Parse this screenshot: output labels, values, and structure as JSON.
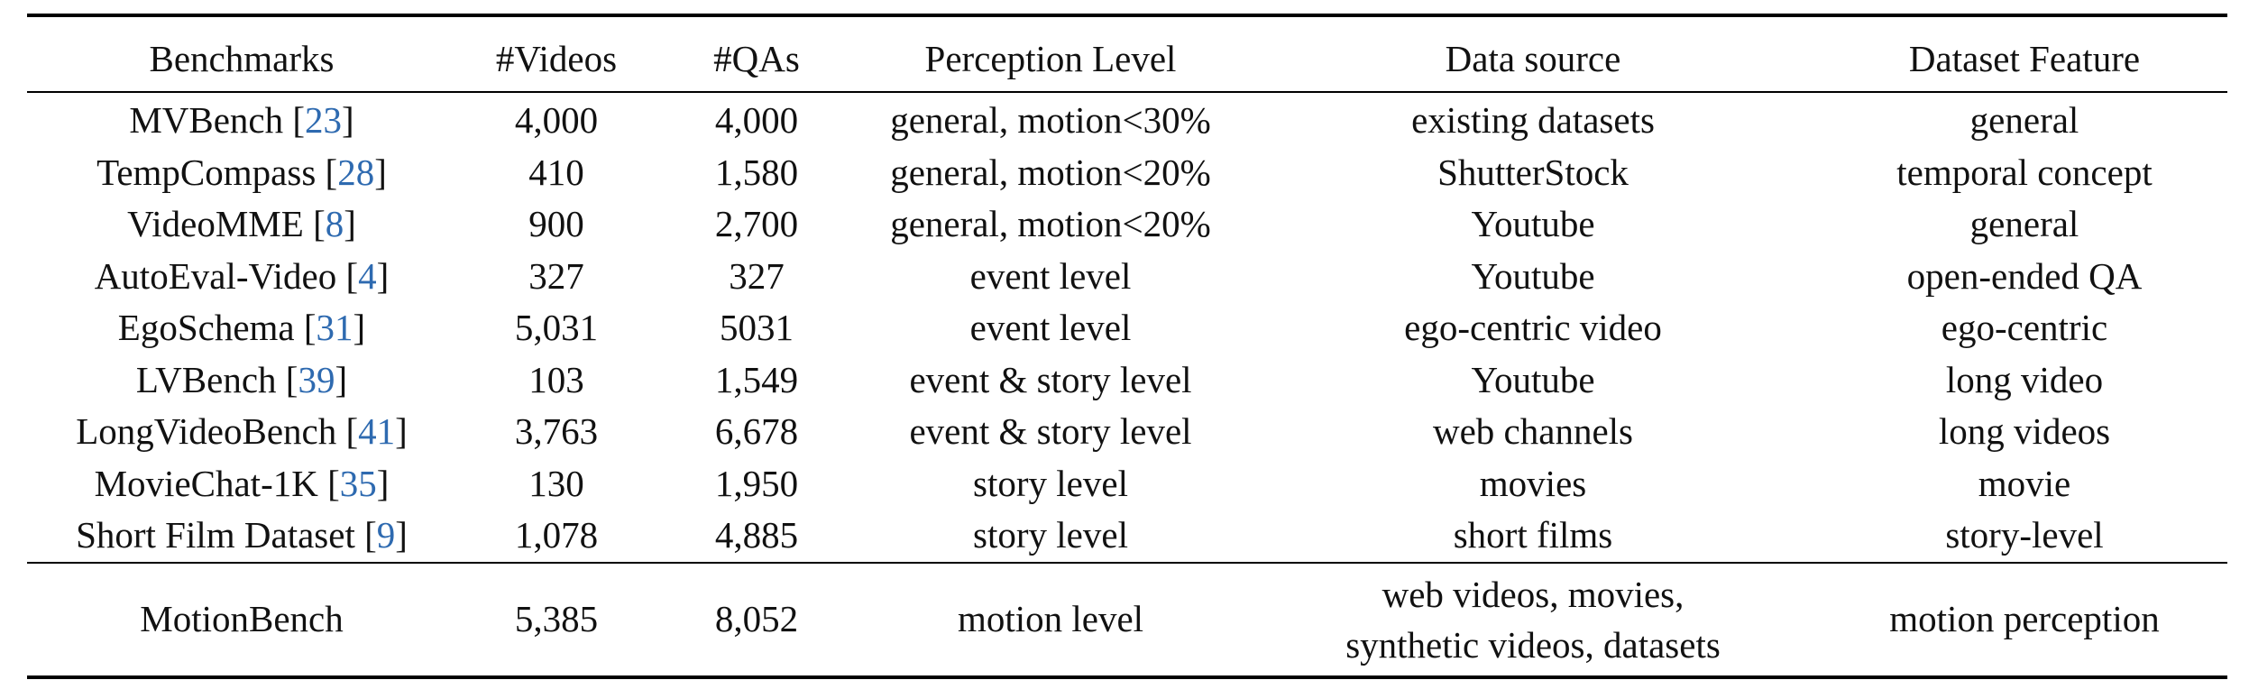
{
  "table": {
    "headers": [
      "Benchmarks",
      "#Videos",
      "#QAs",
      "Perception Level",
      "Data source",
      "Dataset Feature"
    ],
    "rows": [
      {
        "name": "MVBench",
        "ref": "23",
        "videos": "4,000",
        "qas": "4,000",
        "level": "general, motion<30%",
        "source": "existing datasets",
        "feature": "general"
      },
      {
        "name": "TempCompass",
        "ref": "28",
        "videos": "410",
        "qas": "1,580",
        "level": "general, motion<20%",
        "source": "ShutterStock",
        "feature": "temporal concept"
      },
      {
        "name": "VideoMME",
        "ref": "8",
        "videos": "900",
        "qas": "2,700",
        "level": "general, motion<20%",
        "source": "Youtube",
        "feature": "general"
      },
      {
        "name": "AutoEval-Video",
        "ref": "4",
        "videos": "327",
        "qas": "327",
        "level": "event level",
        "source": "Youtube",
        "feature": "open-ended QA"
      },
      {
        "name": "EgoSchema",
        "ref": "31",
        "videos": "5,031",
        "qas": "5031",
        "level": "event level",
        "source": "ego-centric video",
        "feature": "ego-centric"
      },
      {
        "name": "LVBench",
        "ref": "39",
        "videos": "103",
        "qas": "1,549",
        "level": "event & story level",
        "source": "Youtube",
        "feature": "long video"
      },
      {
        "name": "LongVideoBench",
        "ref": "41",
        "videos": "3,763",
        "qas": "6,678",
        "level": "event & story level",
        "source": "web channels",
        "feature": "long videos"
      },
      {
        "name": "MovieChat-1K",
        "ref": "35",
        "videos": "130",
        "qas": "1,950",
        "level": "story level",
        "source": "movies",
        "feature": "movie"
      },
      {
        "name": "Short Film Dataset",
        "ref": "9",
        "videos": "1,078",
        "qas": "4,885",
        "level": "story level",
        "source": "short films",
        "feature": "story-level"
      }
    ],
    "ours": {
      "name": "MotionBench",
      "videos": "5,385",
      "qas": "8,052",
      "level": "motion level",
      "source_line1": "web videos, movies,",
      "source_line2": "synthetic videos, datasets",
      "feature": "motion perception"
    }
  },
  "colors": {
    "citation": "#2e6ab0",
    "text": "#111111",
    "rule": "#000000"
  }
}
